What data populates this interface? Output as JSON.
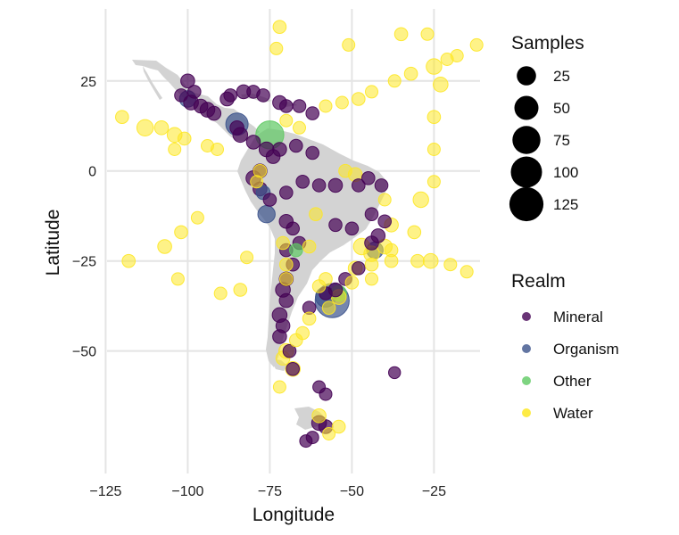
{
  "chart_data": {
    "type": "scatter",
    "xlabel": "Longitude",
    "ylabel": "Latitude",
    "xlim": [
      -130,
      -5
    ],
    "ylim": [
      -85,
      45
    ],
    "x_ticks": [
      -125,
      -100,
      -75,
      -50,
      -25
    ],
    "y_ticks": [
      25,
      0,
      -25,
      -50
    ],
    "x_tick_labels": [
      "−125",
      "−100",
      "−75",
      "−50",
      "−25"
    ],
    "y_tick_labels": [
      "25",
      "0",
      "−25",
      "−50"
    ],
    "grid": true,
    "basemap": "Americas (Mexico, Central America, Caribbean, South America)",
    "size_legend": {
      "title": "Samples",
      "values": [
        25,
        50,
        75,
        100,
        125
      ],
      "labels": [
        "25",
        "50",
        "75",
        "100",
        "125"
      ]
    },
    "color_legend": {
      "title": "Realm",
      "categories": [
        "Mineral",
        "Organism",
        "Other",
        "Water"
      ],
      "colors": [
        "#440154",
        "#3b528b",
        "#5ec962",
        "#fde725"
      ]
    },
    "series": [
      {
        "name": "Mineral",
        "color": "#440154",
        "points": [
          {
            "lon": -100,
            "lat": 25,
            "n": 8
          },
          {
            "lon": -98,
            "lat": 22,
            "n": 6
          },
          {
            "lon": -102,
            "lat": 21,
            "n": 6
          },
          {
            "lon": -99,
            "lat": 19,
            "n": 10
          },
          {
            "lon": -96,
            "lat": 18,
            "n": 8
          },
          {
            "lon": -94,
            "lat": 17,
            "n": 10
          },
          {
            "lon": -92,
            "lat": 16,
            "n": 8
          },
          {
            "lon": -88,
            "lat": 20,
            "n": 8
          },
          {
            "lon": -87,
            "lat": 21,
            "n": 6
          },
          {
            "lon": -83,
            "lat": 22,
            "n": 8
          },
          {
            "lon": -80,
            "lat": 22,
            "n": 6
          },
          {
            "lon": -77,
            "lat": 21,
            "n": 6
          },
          {
            "lon": -72,
            "lat": 19,
            "n": 8
          },
          {
            "lon": -70,
            "lat": 18,
            "n": 6
          },
          {
            "lon": -66,
            "lat": 18,
            "n": 6
          },
          {
            "lon": -62,
            "lat": 16,
            "n": 6
          },
          {
            "lon": -85,
            "lat": 12,
            "n": 8
          },
          {
            "lon": -84,
            "lat": 10,
            "n": 10
          },
          {
            "lon": -80,
            "lat": 8,
            "n": 8
          },
          {
            "lon": -76,
            "lat": 6,
            "n": 10
          },
          {
            "lon": -74,
            "lat": 4,
            "n": 8
          },
          {
            "lon": -72,
            "lat": 6,
            "n": 8
          },
          {
            "lon": -67,
            "lat": 7,
            "n": 6
          },
          {
            "lon": -62,
            "lat": 5,
            "n": 6
          },
          {
            "lon": -78,
            "lat": 0,
            "n": 8
          },
          {
            "lon": -80,
            "lat": -2,
            "n": 10
          },
          {
            "lon": -78,
            "lat": -5,
            "n": 8
          },
          {
            "lon": -75,
            "lat": -8,
            "n": 6
          },
          {
            "lon": -70,
            "lat": -6,
            "n": 6
          },
          {
            "lon": -65,
            "lat": -3,
            "n": 6
          },
          {
            "lon": -60,
            "lat": -4,
            "n": 6
          },
          {
            "lon": -55,
            "lat": -4,
            "n": 8
          },
          {
            "lon": -48,
            "lat": -4,
            "n": 6
          },
          {
            "lon": -45,
            "lat": -2,
            "n": 6
          },
          {
            "lon": -41,
            "lat": -4,
            "n": 6
          },
          {
            "lon": -44,
            "lat": -12,
            "n": 6
          },
          {
            "lon": -40,
            "lat": -14,
            "n": 6
          },
          {
            "lon": -42,
            "lat": -18,
            "n": 8
          },
          {
            "lon": -44,
            "lat": -20,
            "n": 8
          },
          {
            "lon": -50,
            "lat": -16,
            "n": 6
          },
          {
            "lon": -55,
            "lat": -15,
            "n": 6
          },
          {
            "lon": -70,
            "lat": -14,
            "n": 8
          },
          {
            "lon": -68,
            "lat": -16,
            "n": 6
          },
          {
            "lon": -66,
            "lat": -20,
            "n": 6
          },
          {
            "lon": -70,
            "lat": -22,
            "n": 6
          },
          {
            "lon": -68,
            "lat": -26,
            "n": 6
          },
          {
            "lon": -70,
            "lat": -30,
            "n": 8
          },
          {
            "lon": -71,
            "lat": -33,
            "n": 10
          },
          {
            "lon": -70,
            "lat": -36,
            "n": 8
          },
          {
            "lon": -72,
            "lat": -40,
            "n": 10
          },
          {
            "lon": -71,
            "lat": -43,
            "n": 8
          },
          {
            "lon": -72,
            "lat": -46,
            "n": 8
          },
          {
            "lon": -69,
            "lat": -50,
            "n": 6
          },
          {
            "lon": -63,
            "lat": -38,
            "n": 6
          },
          {
            "lon": -58,
            "lat": -34,
            "n": 6
          },
          {
            "lon": -55,
            "lat": -33,
            "n": 8
          },
          {
            "lon": -52,
            "lat": -30,
            "n": 6
          },
          {
            "lon": -48,
            "lat": -27,
            "n": 6
          },
          {
            "lon": -68,
            "lat": -55,
            "n": 6
          },
          {
            "lon": -60,
            "lat": -60,
            "n": 5
          },
          {
            "lon": -58,
            "lat": -62,
            "n": 5
          },
          {
            "lon": -37,
            "lat": -56,
            "n": 4
          },
          {
            "lon": -60,
            "lat": -70,
            "n": 10
          },
          {
            "lon": -58,
            "lat": -71,
            "n": 8
          },
          {
            "lon": -62,
            "lat": -74,
            "n": 5
          },
          {
            "lon": -64,
            "lat": -75,
            "n": 5
          }
        ]
      },
      {
        "name": "Organism",
        "color": "#3b528b",
        "points": [
          {
            "lon": -100,
            "lat": 20,
            "n": 15
          },
          {
            "lon": -85,
            "lat": 13,
            "n": 40
          },
          {
            "lon": -77,
            "lat": -6,
            "n": 8
          },
          {
            "lon": -76,
            "lat": -12,
            "n": 18
          },
          {
            "lon": -56,
            "lat": -36,
            "n": 125
          },
          {
            "lon": -58,
            "lat": -35,
            "n": 30
          },
          {
            "lon": -43,
            "lat": -22,
            "n": 15
          }
        ]
      },
      {
        "name": "Other",
        "color": "#5ec962",
        "points": [
          {
            "lon": -75,
            "lat": 10,
            "n": 75
          },
          {
            "lon": -67,
            "lat": -22,
            "n": 6
          },
          {
            "lon": -54,
            "lat": -34,
            "n": 12
          }
        ]
      },
      {
        "name": "Water",
        "color": "#fde725",
        "points": [
          {
            "lon": -72,
            "lat": 40,
            "n": 6
          },
          {
            "lon": -51,
            "lat": 35,
            "n": 5
          },
          {
            "lon": -35,
            "lat": 38,
            "n": 6
          },
          {
            "lon": -27,
            "lat": 38,
            "n": 5
          },
          {
            "lon": -73,
            "lat": 34,
            "n": 5
          },
          {
            "lon": -25,
            "lat": 29,
            "n": 12
          },
          {
            "lon": -21,
            "lat": 31,
            "n": 5
          },
          {
            "lon": -18,
            "lat": 32,
            "n": 5
          },
          {
            "lon": -12,
            "lat": 35,
            "n": 5
          },
          {
            "lon": -32,
            "lat": 27,
            "n": 6
          },
          {
            "lon": -23,
            "lat": 24,
            "n": 10
          },
          {
            "lon": -37,
            "lat": 25,
            "n": 5
          },
          {
            "lon": -44,
            "lat": 22,
            "n": 5
          },
          {
            "lon": -48,
            "lat": 20,
            "n": 6
          },
          {
            "lon": -53,
            "lat": 19,
            "n": 5
          },
          {
            "lon": -58,
            "lat": 18,
            "n": 5
          },
          {
            "lon": -25,
            "lat": 15,
            "n": 6
          },
          {
            "lon": -25,
            "lat": 6,
            "n": 5
          },
          {
            "lon": -25,
            "lat": -3,
            "n": 5
          },
          {
            "lon": -29,
            "lat": -8,
            "n": 12
          },
          {
            "lon": -31,
            "lat": -17,
            "n": 6
          },
          {
            "lon": -40,
            "lat": -8,
            "n": 5
          },
          {
            "lon": -26,
            "lat": -25,
            "n": 10
          },
          {
            "lon": -30,
            "lat": -25,
            "n": 6
          },
          {
            "lon": -20,
            "lat": -26,
            "n": 5
          },
          {
            "lon": -15,
            "lat": -28,
            "n": 5
          },
          {
            "lon": -38,
            "lat": -25,
            "n": 6
          },
          {
            "lon": -44,
            "lat": -30,
            "n": 5
          },
          {
            "lon": -38,
            "lat": -22,
            "n": 6
          },
          {
            "lon": -120,
            "lat": 15,
            "n": 6
          },
          {
            "lon": -113,
            "lat": 12,
            "n": 15
          },
          {
            "lon": -108,
            "lat": 12,
            "n": 8
          },
          {
            "lon": -104,
            "lat": 10,
            "n": 10
          },
          {
            "lon": -94,
            "lat": 7,
            "n": 5
          },
          {
            "lon": -91,
            "lat": 6,
            "n": 5
          },
          {
            "lon": -101,
            "lat": 9,
            "n": 6
          },
          {
            "lon": -104,
            "lat": 6,
            "n": 5
          },
          {
            "lon": -118,
            "lat": -25,
            "n": 6
          },
          {
            "lon": -107,
            "lat": -21,
            "n": 8
          },
          {
            "lon": -102,
            "lat": -17,
            "n": 6
          },
          {
            "lon": -97,
            "lat": -13,
            "n": 5
          },
          {
            "lon": -103,
            "lat": -30,
            "n": 5
          },
          {
            "lon": -84,
            "lat": -33,
            "n": 6
          },
          {
            "lon": -90,
            "lat": -34,
            "n": 5
          },
          {
            "lon": -82,
            "lat": -24,
            "n": 5
          },
          {
            "lon": -78,
            "lat": 0,
            "n": 6
          },
          {
            "lon": -79,
            "lat": -3,
            "n": 5
          },
          {
            "lon": -49,
            "lat": -1,
            "n": 8
          },
          {
            "lon": -52,
            "lat": 0,
            "n": 6
          },
          {
            "lon": -47,
            "lat": -21,
            "n": 15
          },
          {
            "lon": -44,
            "lat": -23,
            "n": 12
          },
          {
            "lon": -40,
            "lat": -21,
            "n": 10
          },
          {
            "lon": -38,
            "lat": -15,
            "n": 8
          },
          {
            "lon": -44,
            "lat": -26,
            "n": 6
          },
          {
            "lon": -49,
            "lat": -27,
            "n": 8
          },
          {
            "lon": -50,
            "lat": -31,
            "n": 6
          },
          {
            "lon": -54,
            "lat": -35,
            "n": 10
          },
          {
            "lon": -57,
            "lat": -38,
            "n": 6
          },
          {
            "lon": -63,
            "lat": -41,
            "n": 6
          },
          {
            "lon": -65,
            "lat": -45,
            "n": 6
          },
          {
            "lon": -67,
            "lat": -47,
            "n": 6
          },
          {
            "lon": -70,
            "lat": -50,
            "n": 10
          },
          {
            "lon": -71,
            "lat": -52,
            "n": 8
          },
          {
            "lon": -68,
            "lat": -55,
            "n": 10
          },
          {
            "lon": -70,
            "lat": -26,
            "n": 6
          },
          {
            "lon": -70,
            "lat": -30,
            "n": 6
          },
          {
            "lon": -71,
            "lat": -20,
            "n": 6
          },
          {
            "lon": -60,
            "lat": -68,
            "n": 8
          },
          {
            "lon": -54,
            "lat": -71,
            "n": 6
          },
          {
            "lon": -57,
            "lat": -73,
            "n": 5
          },
          {
            "lon": -72,
            "lat": -60,
            "n": 5
          },
          {
            "lon": -60,
            "lat": -32,
            "n": 6
          },
          {
            "lon": -58,
            "lat": -30,
            "n": 6
          },
          {
            "lon": -63,
            "lat": -21,
            "n": 6
          },
          {
            "lon": -61,
            "lat": -12,
            "n": 6
          },
          {
            "lon": -70,
            "lat": 14,
            "n": 5
          },
          {
            "lon": -66,
            "lat": 12,
            "n": 5
          }
        ]
      }
    ]
  }
}
